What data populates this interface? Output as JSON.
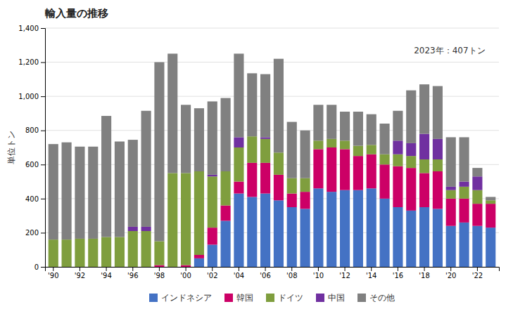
{
  "chart_data": {
    "type": "bar",
    "stacked": true,
    "title": "輸入量の推移",
    "ylabel": "単位トン",
    "annotation": "2023年：407トン",
    "categories": [
      "'90",
      null,
      "'92",
      null,
      "'94",
      null,
      "'96",
      null,
      "'98",
      null,
      "'00",
      null,
      "'02",
      null,
      "'04",
      null,
      "'06",
      null,
      "'08",
      null,
      "'10",
      null,
      "'12",
      null,
      "'14",
      null,
      "'16",
      null,
      "'18",
      null,
      "'20",
      null,
      "'22",
      null
    ],
    "series": [
      {
        "name": "インドネシア",
        "color": "#4472c4",
        "values": [
          0,
          0,
          0,
          0,
          0,
          0,
          0,
          0,
          0,
          0,
          0,
          50,
          130,
          270,
          430,
          410,
          430,
          390,
          350,
          340,
          460,
          440,
          450,
          450,
          460,
          400,
          350,
          330,
          350,
          340,
          240,
          260,
          240,
          230
        ]
      },
      {
        "name": "韓国",
        "color": "#cc0066",
        "values": [
          0,
          0,
          0,
          0,
          0,
          0,
          0,
          0,
          10,
          0,
          10,
          20,
          100,
          90,
          70,
          200,
          180,
          150,
          80,
          100,
          230,
          260,
          240,
          200,
          200,
          200,
          240,
          250,
          200,
          220,
          160,
          140,
          130,
          140
        ]
      },
      {
        "name": "ドイツ",
        "color": "#7f9e3e",
        "values": [
          160,
          160,
          165,
          165,
          175,
          175,
          210,
          210,
          140,
          550,
          540,
          490,
          300,
          200,
          200,
          155,
          140,
          130,
          90,
          80,
          50,
          50,
          50,
          60,
          55,
          60,
          70,
          70,
          80,
          70,
          50,
          70,
          80,
          20
        ]
      },
      {
        "name": "中国",
        "color": "#7030a0",
        "values": [
          0,
          0,
          0,
          0,
          0,
          0,
          25,
          25,
          0,
          0,
          0,
          0,
          10,
          0,
          60,
          0,
          10,
          0,
          0,
          0,
          0,
          0,
          0,
          0,
          0,
          0,
          80,
          75,
          150,
          120,
          20,
          30,
          80,
          0
        ]
      },
      {
        "name": "その他",
        "color": "#808080",
        "values": [
          560,
          570,
          540,
          540,
          710,
          560,
          510,
          680,
          1050,
          700,
          400,
          370,
          430,
          430,
          490,
          370,
          370,
          550,
          330,
          280,
          210,
          200,
          170,
          200,
          180,
          180,
          175,
          310,
          290,
          310,
          290,
          260,
          50,
          20
        ]
      }
    ],
    "ylim": [
      0,
      1400
    ],
    "yticks": [
      0,
      200,
      400,
      600,
      800,
      {
        "value": 1000,
        "label": "1,000"
      },
      {
        "value": 1200,
        "label": "1,200"
      },
      {
        "value": 1400,
        "label": "1,400"
      }
    ],
    "grid": true,
    "legend": "bottom"
  }
}
